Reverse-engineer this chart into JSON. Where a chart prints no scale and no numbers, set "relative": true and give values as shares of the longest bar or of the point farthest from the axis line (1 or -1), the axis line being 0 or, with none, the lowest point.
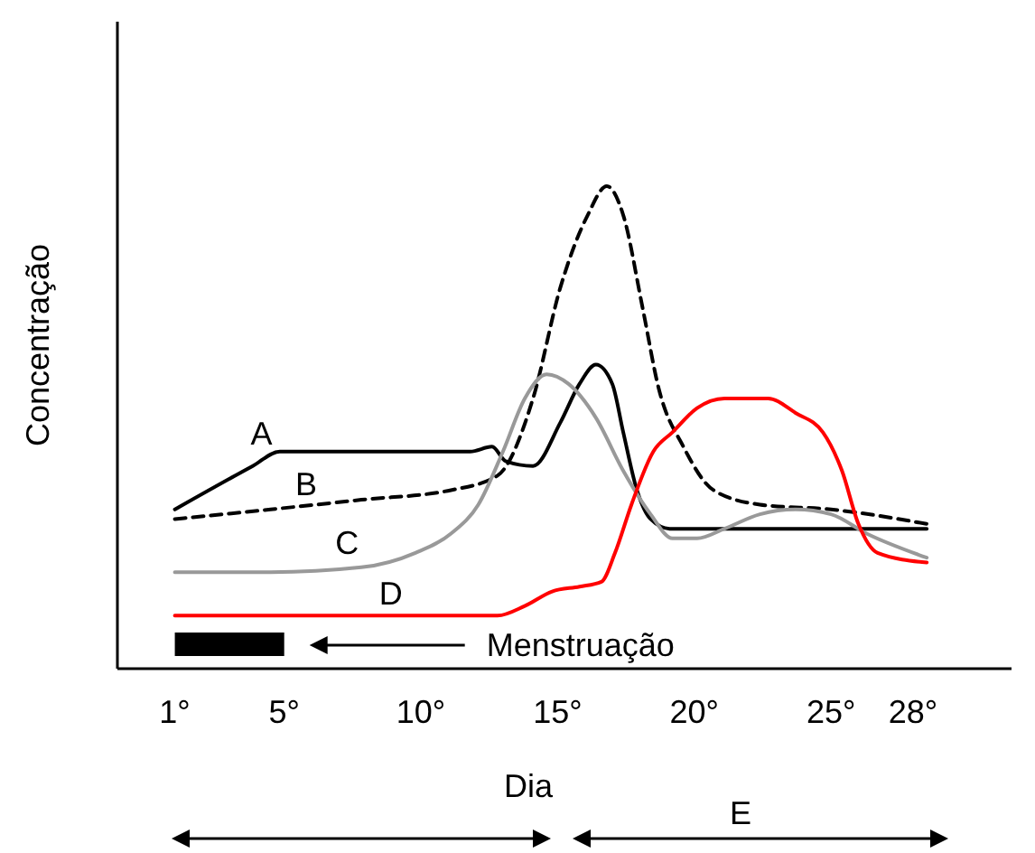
{
  "chart_data": {
    "type": "line",
    "relative": true,
    "xlabel": "Dia",
    "ylabel": "Concentração",
    "xlim": [
      -1.1,
      31.6
    ],
    "xticks": [
      {
        "value": 1,
        "label": "1°"
      },
      {
        "value": 5,
        "label": "5°"
      },
      {
        "value": 10,
        "label": "10°"
      },
      {
        "value": 15,
        "label": "15°"
      },
      {
        "value": 20,
        "label": "20°"
      },
      {
        "value": 25,
        "label": "25°"
      },
      {
        "value": 28,
        "label": "28°"
      }
    ],
    "grid": false,
    "marker": "none",
    "series": [
      {
        "name": "A",
        "color": "#000000",
        "line_style": "solid",
        "x": [
          1,
          3.85,
          4.84,
          7.82,
          11.8,
          12.6,
          13.1,
          14.1,
          15.1,
          15.8,
          16.4,
          17.0,
          17.4,
          17.9,
          18.4,
          19.1,
          20.4,
          23.0,
          25.7,
          28.5
        ],
        "values": [
          0.33,
          0.42,
          0.45,
          0.45,
          0.45,
          0.46,
          0.43,
          0.42,
          0.51,
          0.59,
          0.63,
          0.59,
          0.49,
          0.37,
          0.31,
          0.29,
          0.29,
          0.29,
          0.29,
          0.29
        ]
      },
      {
        "name": "B",
        "color": "#000000",
        "line_style": "dashed",
        "x": [
          1,
          4.5,
          7.82,
          11.1,
          12.8,
          14.1,
          15.1,
          16.1,
          16.8,
          17.4,
          18.1,
          18.7,
          19.6,
          20.7,
          22.4,
          25.0,
          28.5
        ],
        "values": [
          0.31,
          0.33,
          0.35,
          0.37,
          0.4,
          0.56,
          0.79,
          0.94,
          1,
          0.94,
          0.75,
          0.58,
          0.46,
          0.37,
          0.34,
          0.33,
          0.3
        ]
      },
      {
        "name": "C",
        "color": "#999999",
        "line_style": "solid",
        "x": [
          1,
          4.5,
          7.82,
          9.8,
          11.1,
          12.1,
          13.0,
          13.8,
          14.6,
          15.4,
          16.4,
          17.4,
          18.4,
          19.2,
          20.1,
          21.1,
          22.4,
          23.7,
          25.0,
          26.3,
          28.5
        ],
        "values": [
          0.2,
          0.2,
          0.21,
          0.24,
          0.28,
          0.34,
          0.45,
          0.56,
          0.61,
          0.59,
          0.52,
          0.41,
          0.32,
          0.27,
          0.27,
          0.29,
          0.32,
          0.33,
          0.32,
          0.28,
          0.23
        ]
      },
      {
        "name": "D",
        "color": "#ff0000",
        "line_style": "solid",
        "x": [
          1,
          7.82,
          12.8,
          13.8,
          14.8,
          15.8,
          16.6,
          17.1,
          17.7,
          18.5,
          19.2,
          20.1,
          21.1,
          22.7,
          23.7,
          24.7,
          25.4,
          26.0,
          26.7,
          28.5
        ],
        "values": [
          0.11,
          0.11,
          0.11,
          0.13,
          0.16,
          0.17,
          0.18,
          0.24,
          0.34,
          0.45,
          0.49,
          0.54,
          0.56,
          0.56,
          0.53,
          0.49,
          0.41,
          0.3,
          0.24,
          0.22
        ]
      }
    ],
    "bands": [
      {
        "axis": "x",
        "from": 1,
        "to": 5,
        "color": "#000000"
      }
    ],
    "annotations": [
      "Menstruação",
      "E"
    ]
  }
}
